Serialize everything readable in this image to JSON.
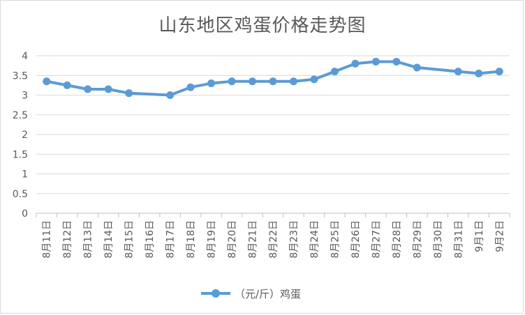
{
  "chart_data": {
    "type": "line",
    "title": "山东地区鸡蛋价格走势图",
    "categories": [
      "8月11日",
      "8月12日",
      "8月13日",
      "8月14日",
      "8月15日",
      "8月16日",
      "8月17日",
      "8月18日",
      "8月19日",
      "8月20日",
      "8月21日",
      "8月22日",
      "8月23日",
      "8月24日",
      "8月25日",
      "8月26日",
      "8月27日",
      "8月28日",
      "8月29日",
      "8月30日",
      "8月31日",
      "9月1日",
      "9月2日"
    ],
    "series": [
      {
        "name": "（元/斤）鸡蛋",
        "color": "#5b9bd5",
        "values": [
          3.35,
          3.25,
          3.15,
          3.15,
          3.05,
          null,
          3.0,
          3.2,
          3.3,
          3.35,
          3.35,
          3.35,
          3.35,
          3.4,
          3.6,
          3.8,
          3.85,
          3.85,
          3.7,
          null,
          3.6,
          3.55,
          3.6
        ]
      }
    ],
    "yticks": [
      "0",
      "0.5",
      "1",
      "1.5",
      "2",
      "2.5",
      "3",
      "3.5",
      "4"
    ],
    "ylim": [
      0,
      4
    ],
    "grid": true,
    "legend": "bottom-center"
  }
}
